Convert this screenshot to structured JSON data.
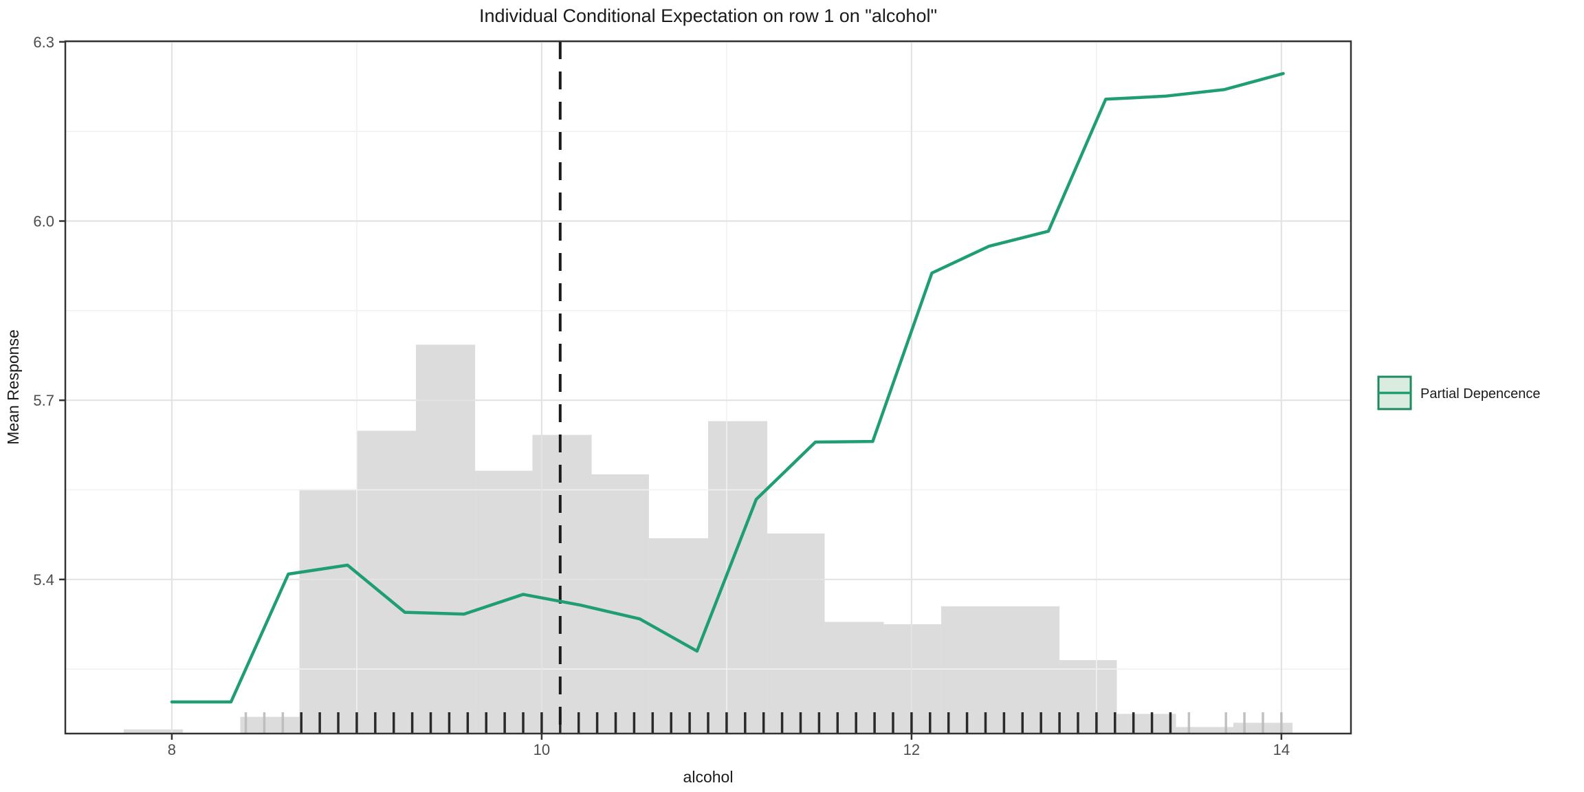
{
  "title": "Individual Conditional Expectation on row 1 on \"alcohol\"",
  "axes": {
    "x": {
      "label": "alcohol",
      "tick_labels": [
        "8",
        "10",
        "12",
        "14"
      ],
      "tick_values": [
        8,
        10,
        12,
        14
      ],
      "minor_grid_values": [
        9,
        11,
        13
      ],
      "domain": [
        7.424,
        14.376
      ]
    },
    "y": {
      "label": "Mean Response",
      "tick_labels": [
        "6.3",
        "6.0",
        "5.7",
        "5.4"
      ],
      "tick_values": [
        6.3,
        6.0,
        5.7,
        5.4
      ],
      "minor_grid_values": [
        6.15,
        5.85,
        5.55,
        5.25
      ],
      "domain": [
        5.142,
        6.301
      ]
    }
  },
  "legend": {
    "label": "Partial Depencence",
    "swatch_fill": "#d9ecdf",
    "swatch_border": "#1e8a5f",
    "line_color": "#1f9e71"
  },
  "colors": {
    "pd_line": "#1f9e71",
    "histogram_fill": "#dcdcdc",
    "grid_major": "#e3e3e3",
    "grid_minor": "#f1f1f1",
    "panel_border": "#333333",
    "dashed_line": "#1a1a1a",
    "rug_dark": "#111111",
    "rug_light": "#bbbbbb",
    "tick_text": "#4d4d4d",
    "title_text": "#1a1a1a"
  },
  "chart_data": {
    "type": "line",
    "title": "Individual Conditional Expectation on row 1 on \"alcohol\"",
    "xlabel": "alcohol",
    "ylabel": "Mean Response",
    "xlim": [
      7.424,
      14.376
    ],
    "ylim": [
      5.142,
      6.301
    ],
    "grid": "on",
    "legend_position": "right",
    "series": [
      {
        "name": "Partial Depencence",
        "x": [
          8.0,
          8.32,
          8.63,
          8.95,
          9.26,
          9.58,
          9.9,
          10.21,
          10.53,
          10.84,
          11.16,
          11.48,
          11.79,
          12.11,
          12.42,
          12.74,
          13.05,
          13.37,
          13.69,
          14.01
        ],
        "y": [
          5.195,
          5.195,
          5.409,
          5.424,
          5.345,
          5.342,
          5.375,
          5.357,
          5.334,
          5.28,
          5.534,
          5.63,
          5.631,
          5.913,
          5.958,
          5.983,
          6.204,
          6.209,
          6.22,
          6.247
        ]
      }
    ],
    "histogram": {
      "baseline": 5.142,
      "bins": [
        {
          "x0": 7.74,
          "x1": 8.06,
          "top": 5.149
        },
        {
          "x0": 8.37,
          "x1": 8.69,
          "top": 5.17
        },
        {
          "x0": 8.69,
          "x1": 9.0,
          "top": 5.551
        },
        {
          "x0": 9.0,
          "x1": 9.32,
          "top": 5.649
        },
        {
          "x0": 9.32,
          "x1": 9.64,
          "top": 5.793
        },
        {
          "x0": 9.64,
          "x1": 9.95,
          "top": 5.582
        },
        {
          "x0": 9.95,
          "x1": 10.27,
          "top": 5.642
        },
        {
          "x0": 10.27,
          "x1": 10.58,
          "top": 5.576
        },
        {
          "x0": 10.58,
          "x1": 10.9,
          "top": 5.469
        },
        {
          "x0": 10.9,
          "x1": 11.22,
          "top": 5.665
        },
        {
          "x0": 11.22,
          "x1": 11.53,
          "top": 5.477
        },
        {
          "x0": 11.53,
          "x1": 11.85,
          "top": 5.329
        },
        {
          "x0": 11.85,
          "x1": 12.16,
          "top": 5.325
        },
        {
          "x0": 12.16,
          "x1": 12.48,
          "top": 5.355
        },
        {
          "x0": 12.48,
          "x1": 12.8,
          "top": 5.355
        },
        {
          "x0": 12.8,
          "x1": 13.11,
          "top": 5.265
        },
        {
          "x0": 13.11,
          "x1": 13.43,
          "top": 5.175
        },
        {
          "x0": 13.43,
          "x1": 13.74,
          "top": 5.153
        },
        {
          "x0": 13.74,
          "x1": 14.06,
          "top": 5.16
        }
      ]
    },
    "rug": {
      "values": [
        8.4,
        8.5,
        8.6,
        8.7,
        8.8,
        8.9,
        9.0,
        9.1,
        9.2,
        9.3,
        9.4,
        9.5,
        9.6,
        9.7,
        9.8,
        9.9,
        10.0,
        10.1,
        10.2,
        10.3,
        10.4,
        10.5,
        10.6,
        10.7,
        10.8,
        10.9,
        11.0,
        11.1,
        11.2,
        11.3,
        11.4,
        11.5,
        11.6,
        11.7,
        11.8,
        11.9,
        12.0,
        12.1,
        12.2,
        12.3,
        12.4,
        12.5,
        12.6,
        12.7,
        12.8,
        12.9,
        13.0,
        13.1,
        13.2,
        13.3,
        13.4,
        13.5,
        13.7,
        13.8,
        13.9,
        14.0
      ],
      "light_values": [
        8.4,
        8.5,
        8.6,
        13.5,
        13.7,
        13.8,
        13.9,
        14.0
      ]
    },
    "vline": {
      "x": 10.1,
      "style": "dashed",
      "meaning": "row 1 alcohol value"
    }
  }
}
